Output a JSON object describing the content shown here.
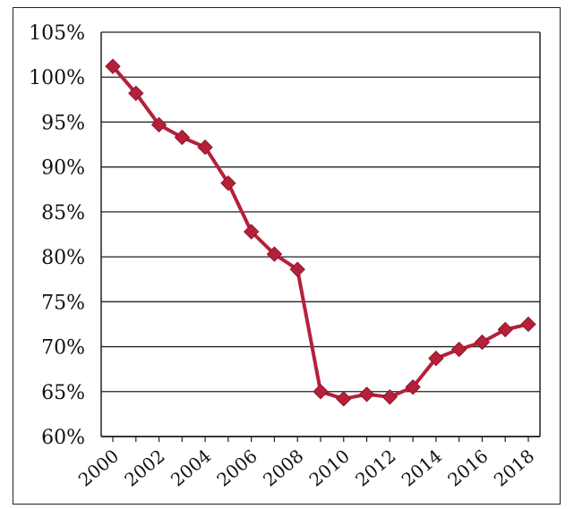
{
  "chart_data": {
    "type": "line",
    "title": "",
    "xlabel": "",
    "ylabel": "",
    "x": [
      2000,
      2001,
      2002,
      2003,
      2004,
      2005,
      2006,
      2007,
      2008,
      2009,
      2010,
      2011,
      2012,
      2013,
      2014,
      2015,
      2016,
      2017,
      2018
    ],
    "series": [
      {
        "name": "",
        "values": [
          101.2,
          98.2,
          94.7,
          93.3,
          92.2,
          88.2,
          82.8,
          80.3,
          78.6,
          65.0,
          64.2,
          64.7,
          64.4,
          65.5,
          68.7,
          69.7,
          70.5,
          71.9,
          72.5
        ]
      }
    ],
    "ylim": [
      60,
      105
    ],
    "yticks": [
      "60%",
      "65%",
      "70%",
      "75%",
      "80%",
      "85%",
      "90%",
      "95%",
      "100%",
      "105%"
    ],
    "xticks": [
      "2000",
      "2002",
      "2004",
      "2006",
      "2008",
      "2010",
      "2012",
      "2014",
      "2016",
      "2018"
    ],
    "grid": true,
    "legend": "none",
    "colors": {
      "line": "#b5203a",
      "marker": "#b5203a",
      "grid": "#222222",
      "axis": "#222222"
    }
  }
}
